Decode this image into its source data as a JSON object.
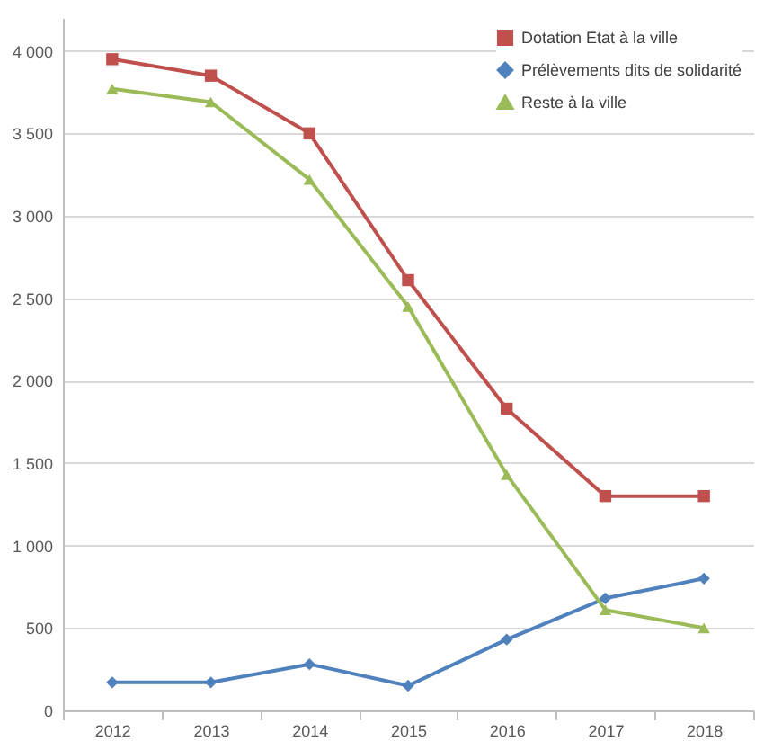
{
  "chart_data": {
    "type": "line",
    "categories": [
      "2012",
      "2013",
      "2014",
      "2015",
      "2016",
      "2017",
      "2018"
    ],
    "series": [
      {
        "name": "Dotation Etat à la ville",
        "color": "#c0504d",
        "marker": "square",
        "values": [
          3950,
          3850,
          3500,
          2610,
          1830,
          1300,
          1300
        ]
      },
      {
        "name": "Prélèvements dits de solidarité",
        "color": "#4f81bd",
        "marker": "diamond",
        "values": [
          170,
          170,
          280,
          150,
          430,
          680,
          800
        ]
      },
      {
        "name": "Reste à la ville",
        "color": "#9bbb59",
        "marker": "triangle",
        "values": [
          3770,
          3690,
          3220,
          2450,
          1430,
          610,
          500
        ]
      }
    ],
    "ylim": [
      0,
      4200
    ],
    "yticks": [
      0,
      500,
      {
        "value": 1000,
        "label": "1 000"
      },
      {
        "value": 1500,
        "label": "1 500"
      },
      {
        "value": 2000,
        "label": "2 000"
      },
      {
        "value": 2500,
        "label": "2 500"
      },
      {
        "value": 3000,
        "label": "3 000"
      },
      {
        "value": 3500,
        "label": "3 500"
      },
      {
        "value": 4000,
        "label": "4 000"
      }
    ],
    "grid": "y",
    "legend": "top right",
    "line_style": "solid"
  }
}
